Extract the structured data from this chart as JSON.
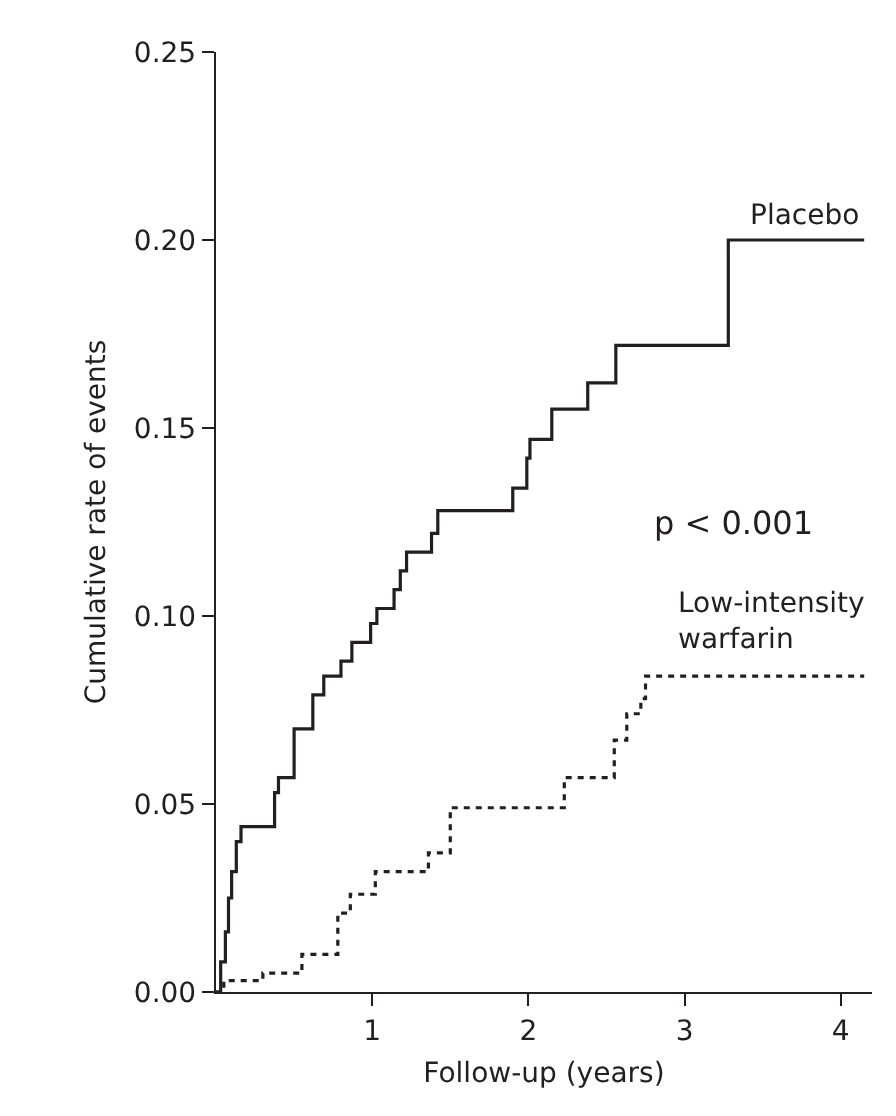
{
  "chart_data": {
    "type": "step",
    "xlabel": "Follow-up (years)",
    "ylabel": "Cumulative rate of events",
    "xlim": [
      0,
      4.2
    ],
    "xticks": [
      1,
      2,
      3,
      4
    ],
    "ylim": [
      0,
      0.25
    ],
    "yticks": [
      {
        "value": 0,
        "label": "0.00"
      },
      {
        "value": 0.05,
        "label": "0.05"
      },
      {
        "value": 0.1,
        "label": "0.10"
      },
      {
        "value": 0.15,
        "label": "0.15"
      },
      {
        "value": 0.2,
        "label": "0.20"
      },
      {
        "value": 0.25,
        "label": "0.25"
      }
    ],
    "grid": false,
    "legend": false,
    "marker": "none",
    "annotations": [
      "p < 0.001"
    ],
    "series": [
      {
        "name": "Placebo",
        "color": "#231f20",
        "line_style": "solid",
        "x": [
          0,
          0.03,
          0.06,
          0.08,
          0.1,
          0.13,
          0.16,
          0.375,
          0.4,
          0.5,
          0.62,
          0.69,
          0.8,
          0.87,
          0.99,
          1.03,
          1.14,
          1.18,
          1.22,
          1.38,
          1.42,
          1.9,
          1.99,
          2.01,
          2.15,
          2.38,
          2.56,
          3.28,
          4.15
        ],
        "values": [
          0,
          0.008,
          0.016,
          0.025,
          0.032,
          0.04,
          0.044,
          0.053,
          0.057,
          0.07,
          0.079,
          0.084,
          0.088,
          0.093,
          0.098,
          0.102,
          0.107,
          0.112,
          0.117,
          0.122,
          0.128,
          0.134,
          0.142,
          0.147,
          0.155,
          0.162,
          0.172,
          0.2,
          0.2
        ]
      },
      {
        "name": "Low-intensity\nwarfarin",
        "color": "#231f20",
        "line_style": "dotted",
        "x": [
          0,
          0.05,
          0.3,
          0.55,
          0.78,
          0.86,
          1.02,
          1.36,
          1.5,
          2.23,
          2.55,
          2.63,
          2.72,
          2.75,
          4.15
        ],
        "values": [
          0,
          0.003,
          0.005,
          0.01,
          0.021,
          0.026,
          0.032,
          0.037,
          0.049,
          0.057,
          0.067,
          0.074,
          0.078,
          0.084,
          0.084
        ]
      }
    ]
  }
}
